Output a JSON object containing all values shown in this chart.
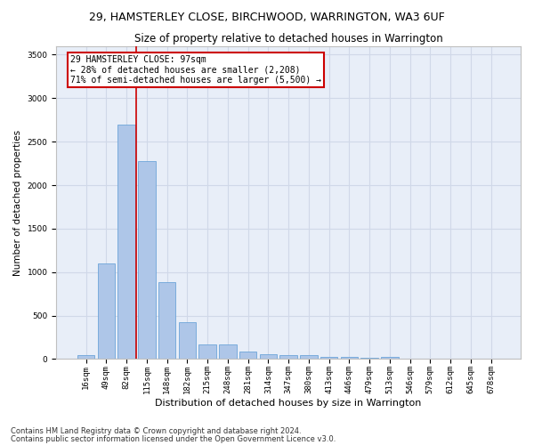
{
  "title": "29, HAMSTERLEY CLOSE, BIRCHWOOD, WARRINGTON, WA3 6UF",
  "subtitle": "Size of property relative to detached houses in Warrington",
  "xlabel": "Distribution of detached houses by size in Warrington",
  "ylabel": "Number of detached properties",
  "bar_labels": [
    "16sqm",
    "49sqm",
    "82sqm",
    "115sqm",
    "148sqm",
    "182sqm",
    "215sqm",
    "248sqm",
    "281sqm",
    "314sqm",
    "347sqm",
    "380sqm",
    "413sqm",
    "446sqm",
    "479sqm",
    "513sqm",
    "546sqm",
    "579sqm",
    "612sqm",
    "645sqm",
    "678sqm"
  ],
  "bar_values": [
    50,
    1100,
    2700,
    2280,
    880,
    420,
    170,
    170,
    90,
    60,
    50,
    50,
    30,
    25,
    15,
    20,
    0,
    0,
    0,
    0,
    0
  ],
  "bar_color": "#aec6e8",
  "bar_edge_color": "#5b9bd5",
  "grid_color": "#d0d8e8",
  "background_color": "#e8eef8",
  "red_line_x": 2.47,
  "annotation_text": "29 HAMSTERLEY CLOSE: 97sqm\n← 28% of detached houses are smaller (2,208)\n71% of semi-detached houses are larger (5,500) →",
  "annotation_box_color": "#ffffff",
  "annotation_border_color": "#cc0000",
  "ylim": [
    0,
    3600
  ],
  "yticks": [
    0,
    500,
    1000,
    1500,
    2000,
    2500,
    3000,
    3500
  ],
  "footer_line1": "Contains HM Land Registry data © Crown copyright and database right 2024.",
  "footer_line2": "Contains public sector information licensed under the Open Government Licence v3.0.",
  "title_fontsize": 9,
  "subtitle_fontsize": 8.5,
  "xlabel_fontsize": 8,
  "ylabel_fontsize": 7.5,
  "tick_fontsize": 6.5,
  "footer_fontsize": 6,
  "annotation_fontsize": 7
}
